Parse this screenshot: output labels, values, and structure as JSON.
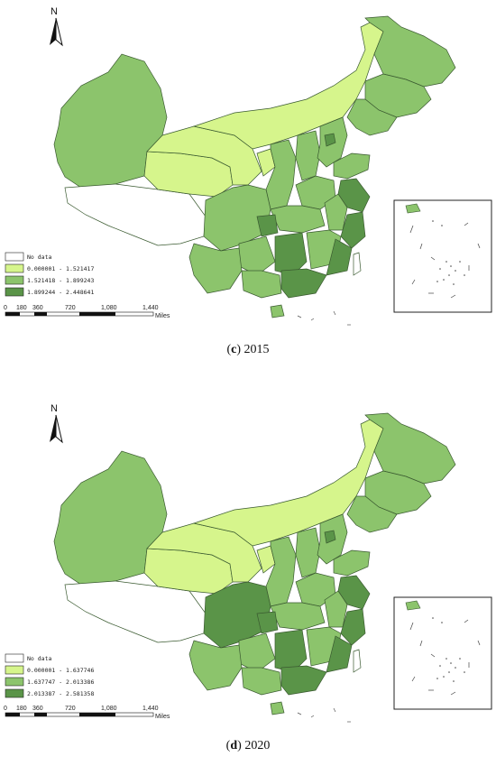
{
  "colors": {
    "no_data": "#ffffff",
    "class1": "#d6f58c",
    "class2": "#8cc46c",
    "class3": "#5a9448",
    "border": "#3a5a30"
  },
  "north_label": "N",
  "scale_bar": {
    "ticks": [
      "0",
      "180",
      "360",
      "720",
      "1,080",
      "1,440"
    ],
    "unit": "Miles"
  },
  "panels": [
    {
      "id": "c",
      "caption_letter": "c",
      "caption_year": "2015",
      "legend": [
        {
          "label": "No data",
          "class": "no_data"
        },
        {
          "label": "0.000001 - 1.521417",
          "class": "class1"
        },
        {
          "label": "1.521418 - 1.899243",
          "class": "class2"
        },
        {
          "label": "1.899244 - 2.448641",
          "class": "class3"
        }
      ]
    },
    {
      "id": "d",
      "caption_letter": "d",
      "caption_year": "2020",
      "legend": [
        {
          "label": "No data",
          "class": "no_data"
        },
        {
          "label": "0.000001 - 1.637746",
          "class": "class1"
        },
        {
          "label": "1.637747 - 2.013386",
          "class": "class2"
        },
        {
          "label": "2.013387 - 2.581358",
          "class": "class3"
        }
      ]
    }
  ]
}
